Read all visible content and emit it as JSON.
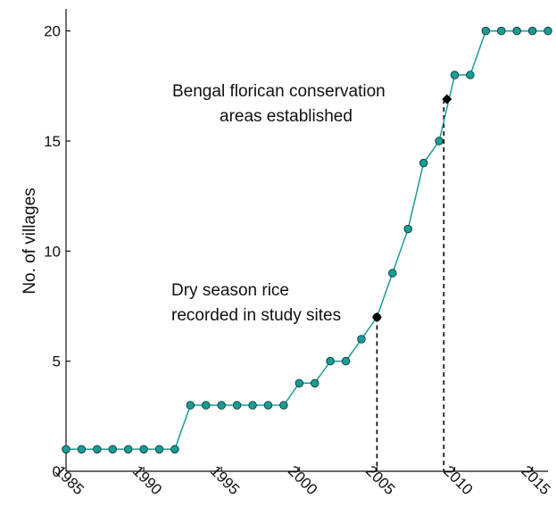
{
  "chart_data": {
    "type": "line",
    "title": "",
    "xlabel": "",
    "ylabel": "No. of villages",
    "xlim": [
      1985,
      2016
    ],
    "ylim": [
      0,
      21
    ],
    "grid": false,
    "x_ticks": [
      1985,
      1990,
      1995,
      2000,
      2005,
      2010,
      2015
    ],
    "y_ticks": [
      0,
      5,
      10,
      15,
      20
    ],
    "x_tick_labels": [
      "1985",
      "1990",
      "1995",
      "2000",
      "2005",
      "2010",
      "2015"
    ],
    "y_tick_labels": [
      "0",
      "5",
      "10",
      "15",
      "20"
    ],
    "series": [
      {
        "color": "#1a9c96",
        "marker_color": "#1a9c96",
        "x": [
          1985,
          1986,
          1987,
          1988,
          1989,
          1990,
          1991,
          1992,
          1993,
          1994,
          1995,
          1996,
          1997,
          1998,
          1999,
          2000,
          2001,
          2002,
          2003,
          2004,
          2005,
          2006,
          2007,
          2008,
          2009,
          2010,
          2011,
          2012,
          2013,
          2014,
          2015,
          2016
        ],
        "y": [
          1,
          1,
          1,
          1,
          1,
          1,
          1,
          1,
          3,
          3,
          3,
          3,
          3,
          3,
          3,
          4,
          4,
          5,
          5,
          6,
          7,
          9,
          11,
          14,
          15,
          18,
          18,
          20,
          20,
          20,
          20,
          20
        ]
      }
    ],
    "annotations": [
      {
        "id": "dry-season",
        "lines": [
          "Dry season rice",
          "recorded in study sites"
        ],
        "marker": {
          "x": 2005,
          "y": 7
        },
        "dashed_line_x": 2005,
        "marker_color": "#000000"
      },
      {
        "id": "florican",
        "lines": [
          "Bengal florican conservation",
          "areas established"
        ],
        "marker": {
          "x": 2009.5,
          "y": 16.9
        },
        "dashed_line_x": 2009.3,
        "marker_color": "#000000"
      }
    ]
  }
}
